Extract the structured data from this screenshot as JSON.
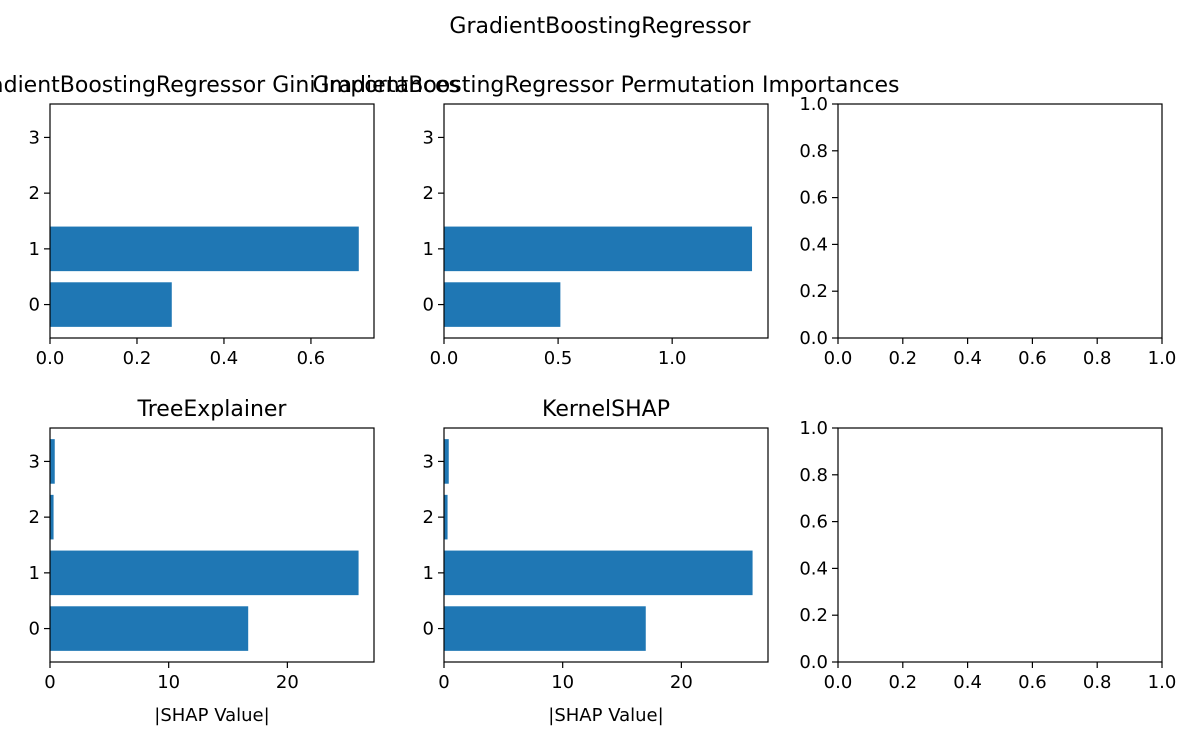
{
  "figure_title": "GradientBoostingRegressor",
  "bar_color": "#1f77b4",
  "chart_data": [
    {
      "type": "bar",
      "orientation": "horizontal",
      "title": "GradientBoostingRegressor Gini Importances",
      "categories": [
        "0",
        "1",
        "2",
        "3"
      ],
      "values": [
        0.28,
        0.71,
        0.0,
        0.0
      ],
      "xlim": [
        0,
        0.745
      ],
      "xticks": [
        0.0,
        0.2,
        0.4,
        0.6
      ],
      "xtick_labels": [
        "0.0",
        "0.2",
        "0.4",
        "0.6"
      ],
      "ylim": [
        -0.6,
        3.6
      ],
      "yticks": [
        0,
        1,
        2,
        3
      ],
      "ytick_labels": [
        "0",
        "1",
        "2",
        "3"
      ],
      "xlabel": "",
      "ylabel": ""
    },
    {
      "type": "bar",
      "orientation": "horizontal",
      "title": "GradientBoostingRegressor Permutation Importances",
      "categories": [
        "0",
        "1",
        "2",
        "3"
      ],
      "values": [
        0.51,
        1.35,
        0.0,
        0.0
      ],
      "xlim": [
        0,
        1.42
      ],
      "xticks": [
        0.0,
        0.5,
        1.0
      ],
      "xtick_labels": [
        "0.0",
        "0.5",
        "1.0"
      ],
      "ylim": [
        -0.6,
        3.6
      ],
      "yticks": [
        0,
        1,
        2,
        3
      ],
      "ytick_labels": [
        "0",
        "1",
        "2",
        "3"
      ],
      "xlabel": "",
      "ylabel": ""
    },
    {
      "type": "empty",
      "title": "",
      "categories": [],
      "values": [],
      "xlim": [
        0,
        1
      ],
      "xticks": [
        0.0,
        0.2,
        0.4,
        0.6,
        0.8,
        1.0
      ],
      "xtick_labels": [
        "0.0",
        "0.2",
        "0.4",
        "0.6",
        "0.8",
        "1.0"
      ],
      "ylim": [
        0,
        1
      ],
      "yticks": [
        0.0,
        0.2,
        0.4,
        0.6,
        0.8,
        1.0
      ],
      "ytick_labels": [
        "0.0",
        "0.2",
        "0.4",
        "0.6",
        "0.8",
        "1.0"
      ],
      "xlabel": "",
      "ylabel": ""
    },
    {
      "type": "bar",
      "orientation": "horizontal",
      "title": "TreeExplainer",
      "categories": [
        "0",
        "1",
        "2",
        "3"
      ],
      "values": [
        16.7,
        26.0,
        0.3,
        0.4
      ],
      "xlim": [
        0,
        27.3
      ],
      "xticks": [
        0,
        10,
        20
      ],
      "xtick_labels": [
        "0",
        "10",
        "20"
      ],
      "ylim": [
        -0.6,
        3.6
      ],
      "yticks": [
        0,
        1,
        2,
        3
      ],
      "ytick_labels": [
        "0",
        "1",
        "2",
        "3"
      ],
      "xlabel": "|SHAP Value|",
      "ylabel": ""
    },
    {
      "type": "bar",
      "orientation": "horizontal",
      "title": "KernelSHAP",
      "categories": [
        "0",
        "1",
        "2",
        "3"
      ],
      "values": [
        17.0,
        26.0,
        0.3,
        0.4
      ],
      "xlim": [
        0,
        27.3
      ],
      "xticks": [
        0,
        10,
        20
      ],
      "xtick_labels": [
        "0",
        "10",
        "20"
      ],
      "ylim": [
        -0.6,
        3.6
      ],
      "yticks": [
        0,
        1,
        2,
        3
      ],
      "ytick_labels": [
        "0",
        "1",
        "2",
        "3"
      ],
      "xlabel": "|SHAP Value|",
      "ylabel": ""
    },
    {
      "type": "empty",
      "title": "",
      "categories": [],
      "values": [],
      "xlim": [
        0,
        1
      ],
      "xticks": [
        0.0,
        0.2,
        0.4,
        0.6,
        0.8,
        1.0
      ],
      "xtick_labels": [
        "0.0",
        "0.2",
        "0.4",
        "0.6",
        "0.8",
        "1.0"
      ],
      "ylim": [
        0,
        1
      ],
      "yticks": [
        0.0,
        0.2,
        0.4,
        0.6,
        0.8,
        1.0
      ],
      "ytick_labels": [
        "0.0",
        "0.2",
        "0.4",
        "0.6",
        "0.8",
        "1.0"
      ],
      "xlabel": "",
      "ylabel": ""
    }
  ]
}
